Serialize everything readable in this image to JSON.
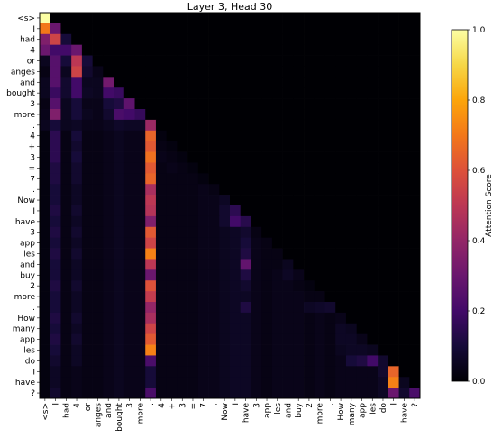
{
  "chart_data": {
    "type": "heatmap",
    "title": "Layer 3, Head 30",
    "xlabel": "",
    "ylabel": "",
    "tokens": [
      "<s>",
      "I",
      "had",
      "4",
      "or",
      "anges",
      "and",
      "bought",
      "3",
      "more",
      ".",
      "4",
      "+",
      "3",
      "=",
      "7",
      ".",
      "Now",
      "I",
      "have",
      "3",
      "app",
      "les",
      "and",
      "buy",
      "2",
      "more",
      ".",
      "How",
      "many",
      "app",
      "les",
      "do",
      "I",
      "have",
      "?"
    ],
    "colormap": "inferno",
    "colorbar": {
      "label": "Attention Score",
      "range": [
        0.0,
        1.0
      ],
      "ticks": [
        "0.0",
        "0.2",
        "0.4",
        "0.6",
        "0.8",
        "1.0"
      ]
    },
    "values": [
      [
        1.0,
        0,
        0,
        0,
        0,
        0,
        0,
        0,
        0,
        0,
        0,
        0,
        0,
        0,
        0,
        0,
        0,
        0,
        0,
        0,
        0,
        0,
        0,
        0,
        0,
        0,
        0,
        0,
        0,
        0,
        0,
        0,
        0,
        0,
        0,
        0
      ],
      [
        0.7,
        0.3,
        0,
        0,
        0,
        0,
        0,
        0,
        0,
        0,
        0,
        0,
        0,
        0,
        0,
        0,
        0,
        0,
        0,
        0,
        0,
        0,
        0,
        0,
        0,
        0,
        0,
        0,
        0,
        0,
        0,
        0,
        0,
        0,
        0,
        0
      ],
      [
        0.35,
        0.55,
        0.1,
        0,
        0,
        0,
        0,
        0,
        0,
        0,
        0,
        0,
        0,
        0,
        0,
        0,
        0,
        0,
        0,
        0,
        0,
        0,
        0,
        0,
        0,
        0,
        0,
        0,
        0,
        0,
        0,
        0,
        0,
        0,
        0,
        0
      ],
      [
        0.3,
        0.2,
        0.2,
        0.3,
        0,
        0,
        0,
        0,
        0,
        0,
        0,
        0,
        0,
        0,
        0,
        0,
        0,
        0,
        0,
        0,
        0,
        0,
        0,
        0,
        0,
        0,
        0,
        0,
        0,
        0,
        0,
        0,
        0,
        0,
        0,
        0
      ],
      [
        0.05,
        0.25,
        0.1,
        0.5,
        0.1,
        0,
        0,
        0,
        0,
        0,
        0,
        0,
        0,
        0,
        0,
        0,
        0,
        0,
        0,
        0,
        0,
        0,
        0,
        0,
        0,
        0,
        0,
        0,
        0,
        0,
        0,
        0,
        0,
        0,
        0,
        0
      ],
      [
        0.03,
        0.25,
        0.05,
        0.55,
        0.08,
        0.04,
        0,
        0,
        0,
        0,
        0,
        0,
        0,
        0,
        0,
        0,
        0,
        0,
        0,
        0,
        0,
        0,
        0,
        0,
        0,
        0,
        0,
        0,
        0,
        0,
        0,
        0,
        0,
        0,
        0,
        0
      ],
      [
        0.05,
        0.25,
        0.08,
        0.2,
        0.05,
        0.05,
        0.32,
        0,
        0,
        0,
        0,
        0,
        0,
        0,
        0,
        0,
        0,
        0,
        0,
        0,
        0,
        0,
        0,
        0,
        0,
        0,
        0,
        0,
        0,
        0,
        0,
        0,
        0,
        0,
        0,
        0
      ],
      [
        0.05,
        0.18,
        0.08,
        0.2,
        0.06,
        0.05,
        0.2,
        0.18,
        0,
        0,
        0,
        0,
        0,
        0,
        0,
        0,
        0,
        0,
        0,
        0,
        0,
        0,
        0,
        0,
        0,
        0,
        0,
        0,
        0,
        0,
        0,
        0,
        0,
        0,
        0,
        0
      ],
      [
        0.03,
        0.25,
        0.05,
        0.1,
        0.04,
        0.04,
        0.1,
        0.12,
        0.27,
        0,
        0,
        0,
        0,
        0,
        0,
        0,
        0,
        0,
        0,
        0,
        0,
        0,
        0,
        0,
        0,
        0,
        0,
        0,
        0,
        0,
        0,
        0,
        0,
        0,
        0,
        0
      ],
      [
        0.04,
        0.35,
        0.05,
        0.1,
        0.05,
        0.04,
        0.08,
        0.22,
        0.2,
        0.17,
        0,
        0,
        0,
        0,
        0,
        0,
        0,
        0,
        0,
        0,
        0,
        0,
        0,
        0,
        0,
        0,
        0,
        0,
        0,
        0,
        0,
        0,
        0,
        0,
        0,
        0
      ],
      [
        0.05,
        0.1,
        0.05,
        0.06,
        0.04,
        0.04,
        0.05,
        0.07,
        0.06,
        0.06,
        0.42,
        0,
        0,
        0,
        0,
        0,
        0,
        0,
        0,
        0,
        0,
        0,
        0,
        0,
        0,
        0,
        0,
        0,
        0,
        0,
        0,
        0,
        0,
        0,
        0,
        0
      ],
      [
        0.02,
        0.15,
        0.03,
        0.1,
        0.03,
        0.03,
        0.04,
        0.05,
        0.04,
        0.04,
        0.65,
        0.02,
        0,
        0,
        0,
        0,
        0,
        0,
        0,
        0,
        0,
        0,
        0,
        0,
        0,
        0,
        0,
        0,
        0,
        0,
        0,
        0,
        0,
        0,
        0,
        0
      ],
      [
        0.02,
        0.15,
        0.03,
        0.08,
        0.03,
        0.03,
        0.04,
        0.05,
        0.04,
        0.04,
        0.62,
        0.03,
        0.02,
        0,
        0,
        0,
        0,
        0,
        0,
        0,
        0,
        0,
        0,
        0,
        0,
        0,
        0,
        0,
        0,
        0,
        0,
        0,
        0,
        0,
        0,
        0
      ],
      [
        0.02,
        0.15,
        0.03,
        0.1,
        0.03,
        0.03,
        0.04,
        0.05,
        0.04,
        0.04,
        0.68,
        0.04,
        0.03,
        0.02,
        0,
        0,
        0,
        0,
        0,
        0,
        0,
        0,
        0,
        0,
        0,
        0,
        0,
        0,
        0,
        0,
        0,
        0,
        0,
        0,
        0,
        0
      ],
      [
        0.02,
        0.12,
        0.03,
        0.08,
        0.03,
        0.03,
        0.04,
        0.05,
        0.04,
        0.04,
        0.62,
        0.03,
        0.04,
        0.03,
        0.02,
        0,
        0,
        0,
        0,
        0,
        0,
        0,
        0,
        0,
        0,
        0,
        0,
        0,
        0,
        0,
        0,
        0,
        0,
        0,
        0,
        0
      ],
      [
        0.02,
        0.12,
        0.03,
        0.08,
        0.03,
        0.03,
        0.04,
        0.05,
        0.04,
        0.04,
        0.65,
        0.03,
        0.03,
        0.03,
        0.03,
        0.02,
        0,
        0,
        0,
        0,
        0,
        0,
        0,
        0,
        0,
        0,
        0,
        0,
        0,
        0,
        0,
        0,
        0,
        0,
        0,
        0
      ],
      [
        0.02,
        0.1,
        0.03,
        0.06,
        0.03,
        0.03,
        0.04,
        0.05,
        0.04,
        0.04,
        0.45,
        0.03,
        0.03,
        0.03,
        0.03,
        0.04,
        0.03,
        0,
        0,
        0,
        0,
        0,
        0,
        0,
        0,
        0,
        0,
        0,
        0,
        0,
        0,
        0,
        0,
        0,
        0,
        0
      ],
      [
        0.02,
        0.1,
        0.03,
        0.06,
        0.03,
        0.03,
        0.04,
        0.05,
        0.04,
        0.04,
        0.5,
        0.03,
        0.03,
        0.03,
        0.03,
        0.04,
        0.04,
        0.06,
        0,
        0,
        0,
        0,
        0,
        0,
        0,
        0,
        0,
        0,
        0,
        0,
        0,
        0,
        0,
        0,
        0,
        0
      ],
      [
        0.02,
        0.12,
        0.03,
        0.08,
        0.03,
        0.03,
        0.04,
        0.05,
        0.04,
        0.04,
        0.48,
        0.03,
        0.03,
        0.03,
        0.03,
        0.04,
        0.04,
        0.08,
        0.15,
        0,
        0,
        0,
        0,
        0,
        0,
        0,
        0,
        0,
        0,
        0,
        0,
        0,
        0,
        0,
        0,
        0
      ],
      [
        0.02,
        0.1,
        0.03,
        0.06,
        0.03,
        0.03,
        0.04,
        0.05,
        0.04,
        0.04,
        0.35,
        0.03,
        0.03,
        0.03,
        0.03,
        0.04,
        0.04,
        0.08,
        0.2,
        0.14,
        0,
        0,
        0,
        0,
        0,
        0,
        0,
        0,
        0,
        0,
        0,
        0,
        0,
        0,
        0,
        0
      ],
      [
        0.02,
        0.12,
        0.03,
        0.08,
        0.03,
        0.03,
        0.04,
        0.05,
        0.04,
        0.04,
        0.62,
        0.03,
        0.03,
        0.03,
        0.03,
        0.04,
        0.04,
        0.05,
        0.06,
        0.08,
        0.03,
        0,
        0,
        0,
        0,
        0,
        0,
        0,
        0,
        0,
        0,
        0,
        0,
        0,
        0,
        0
      ],
      [
        0.02,
        0.1,
        0.03,
        0.06,
        0.03,
        0.03,
        0.04,
        0.05,
        0.04,
        0.04,
        0.55,
        0.03,
        0.03,
        0.03,
        0.03,
        0.04,
        0.04,
        0.05,
        0.06,
        0.1,
        0.04,
        0.03,
        0,
        0,
        0,
        0,
        0,
        0,
        0,
        0,
        0,
        0,
        0,
        0,
        0,
        0
      ],
      [
        0.02,
        0.12,
        0.03,
        0.08,
        0.03,
        0.03,
        0.04,
        0.05,
        0.04,
        0.04,
        0.72,
        0.03,
        0.03,
        0.03,
        0.03,
        0.04,
        0.04,
        0.05,
        0.06,
        0.12,
        0.04,
        0.03,
        0.03,
        0,
        0,
        0,
        0,
        0,
        0,
        0,
        0,
        0,
        0,
        0,
        0,
        0
      ],
      [
        0.02,
        0.1,
        0.03,
        0.06,
        0.03,
        0.03,
        0.04,
        0.05,
        0.04,
        0.04,
        0.5,
        0.03,
        0.03,
        0.03,
        0.03,
        0.04,
        0.04,
        0.05,
        0.06,
        0.28,
        0.04,
        0.03,
        0.03,
        0.05,
        0,
        0,
        0,
        0,
        0,
        0,
        0,
        0,
        0,
        0,
        0,
        0
      ],
      [
        0.02,
        0.1,
        0.03,
        0.06,
        0.03,
        0.03,
        0.04,
        0.05,
        0.04,
        0.04,
        0.3,
        0.03,
        0.03,
        0.03,
        0.03,
        0.04,
        0.04,
        0.05,
        0.06,
        0.12,
        0.04,
        0.03,
        0.04,
        0.06,
        0.04,
        0,
        0,
        0,
        0,
        0,
        0,
        0,
        0,
        0,
        0,
        0
      ],
      [
        0.02,
        0.12,
        0.03,
        0.08,
        0.03,
        0.03,
        0.04,
        0.05,
        0.04,
        0.04,
        0.6,
        0.03,
        0.03,
        0.03,
        0.03,
        0.04,
        0.04,
        0.05,
        0.06,
        0.08,
        0.04,
        0.03,
        0.04,
        0.04,
        0.03,
        0.02,
        0,
        0,
        0,
        0,
        0,
        0,
        0,
        0,
        0,
        0
      ],
      [
        0.02,
        0.1,
        0.03,
        0.06,
        0.03,
        0.03,
        0.04,
        0.05,
        0.04,
        0.04,
        0.52,
        0.03,
        0.03,
        0.03,
        0.03,
        0.04,
        0.04,
        0.05,
        0.06,
        0.06,
        0.04,
        0.03,
        0.04,
        0.04,
        0.04,
        0.03,
        0.03,
        0,
        0,
        0,
        0,
        0,
        0,
        0,
        0,
        0
      ],
      [
        0.02,
        0.1,
        0.03,
        0.06,
        0.03,
        0.03,
        0.04,
        0.05,
        0.04,
        0.04,
        0.4,
        0.03,
        0.03,
        0.03,
        0.03,
        0.04,
        0.04,
        0.05,
        0.06,
        0.12,
        0.04,
        0.03,
        0.04,
        0.04,
        0.04,
        0.06,
        0.07,
        0.08,
        0,
        0,
        0,
        0,
        0,
        0,
        0,
        0
      ],
      [
        0.02,
        0.12,
        0.03,
        0.08,
        0.03,
        0.03,
        0.04,
        0.05,
        0.04,
        0.04,
        0.45,
        0.03,
        0.03,
        0.03,
        0.03,
        0.04,
        0.04,
        0.05,
        0.06,
        0.06,
        0.04,
        0.03,
        0.04,
        0.04,
        0.04,
        0.03,
        0.04,
        0.03,
        0.04,
        0,
        0,
        0,
        0,
        0,
        0,
        0
      ],
      [
        0.02,
        0.1,
        0.03,
        0.06,
        0.03,
        0.03,
        0.04,
        0.05,
        0.04,
        0.04,
        0.55,
        0.03,
        0.03,
        0.03,
        0.03,
        0.04,
        0.04,
        0.05,
        0.06,
        0.06,
        0.04,
        0.03,
        0.04,
        0.04,
        0.04,
        0.03,
        0.04,
        0.03,
        0.06,
        0.05,
        0,
        0,
        0,
        0,
        0,
        0
      ],
      [
        0.02,
        0.12,
        0.03,
        0.08,
        0.03,
        0.03,
        0.04,
        0.05,
        0.04,
        0.04,
        0.62,
        0.03,
        0.03,
        0.03,
        0.03,
        0.04,
        0.04,
        0.05,
        0.06,
        0.06,
        0.04,
        0.03,
        0.04,
        0.04,
        0.04,
        0.03,
        0.04,
        0.03,
        0.06,
        0.06,
        0.04,
        0,
        0,
        0,
        0,
        0
      ],
      [
        0.02,
        0.1,
        0.03,
        0.06,
        0.03,
        0.03,
        0.04,
        0.05,
        0.04,
        0.04,
        0.72,
        0.03,
        0.03,
        0.03,
        0.03,
        0.04,
        0.04,
        0.05,
        0.06,
        0.06,
        0.04,
        0.03,
        0.04,
        0.04,
        0.04,
        0.03,
        0.04,
        0.03,
        0.05,
        0.06,
        0.06,
        0.05,
        0,
        0,
        0,
        0
      ],
      [
        0.02,
        0.08,
        0.03,
        0.06,
        0.03,
        0.03,
        0.04,
        0.05,
        0.04,
        0.04,
        0.22,
        0.03,
        0.03,
        0.03,
        0.03,
        0.04,
        0.04,
        0.05,
        0.06,
        0.06,
        0.04,
        0.03,
        0.04,
        0.04,
        0.04,
        0.03,
        0.04,
        0.03,
        0.04,
        0.1,
        0.12,
        0.2,
        0.08,
        0,
        0,
        0
      ],
      [
        0.02,
        0.06,
        0.03,
        0.04,
        0.03,
        0.03,
        0.04,
        0.05,
        0.04,
        0.04,
        0.1,
        0.03,
        0.03,
        0.03,
        0.03,
        0.04,
        0.04,
        0.05,
        0.06,
        0.06,
        0.04,
        0.03,
        0.04,
        0.04,
        0.04,
        0.03,
        0.04,
        0.03,
        0.04,
        0.04,
        0.04,
        0.04,
        0.08,
        0.65,
        0,
        0
      ],
      [
        0.02,
        0.06,
        0.03,
        0.04,
        0.03,
        0.03,
        0.04,
        0.05,
        0.04,
        0.04,
        0.1,
        0.03,
        0.03,
        0.03,
        0.03,
        0.04,
        0.04,
        0.05,
        0.06,
        0.06,
        0.04,
        0.03,
        0.04,
        0.04,
        0.04,
        0.03,
        0.04,
        0.03,
        0.04,
        0.04,
        0.04,
        0.04,
        0.06,
        0.72,
        0.05,
        0
      ],
      [
        0.02,
        0.08,
        0.03,
        0.04,
        0.03,
        0.03,
        0.04,
        0.05,
        0.04,
        0.04,
        0.22,
        0.03,
        0.03,
        0.03,
        0.03,
        0.04,
        0.04,
        0.05,
        0.06,
        0.06,
        0.04,
        0.03,
        0.04,
        0.04,
        0.04,
        0.03,
        0.04,
        0.03,
        0.04,
        0.04,
        0.04,
        0.04,
        0.06,
        0.3,
        0.08,
        0.22
      ]
    ]
  }
}
